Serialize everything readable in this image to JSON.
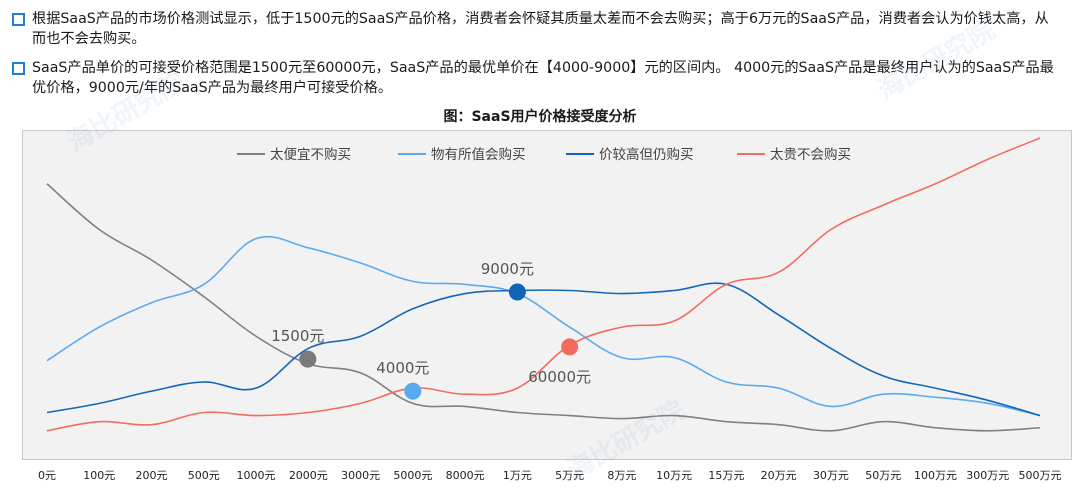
{
  "bullets": [
    "根据SaaS产品的市场价格测试显示，低于1500元的SaaS产品价格，消费者会怀疑其质量太差而不会去购买；高于6万元的SaaS产品，消费者会认为价钱太高，从而也不会去购买。",
    "SaaS产品单价的可接受价格范围是1500元至60000元，SaaS产品的最优单价在【4000-9000】元的区间内。 4000元的SaaS产品是最终用户认为的SaaS产品最优价格，9000元/年的SaaS产品为最终用户可接受价格。"
  ],
  "watermark": "海比研究院",
  "chart_data": {
    "type": "line",
    "title": "图：SaaS用户价格接受度分析",
    "xlabel": "",
    "ylabel": "",
    "grid": false,
    "legend_position": "top",
    "categories": [
      "0元",
      "100元",
      "200元",
      "500元",
      "1000元",
      "2000元",
      "3000元",
      "5000元",
      "8000元",
      "1万元",
      "5万元",
      "8万元",
      "10万元",
      "15万元",
      "20万元",
      "30万元",
      "50万元",
      "100万元",
      "300万元",
      "500万元"
    ],
    "ylim": [
      0,
      100
    ],
    "series": [
      {
        "name": "太便宜不购买",
        "color": "#808080",
        "values": [
          85,
          70,
          60,
          48,
          35,
          26,
          23,
          13,
          12,
          10,
          9,
          8,
          9,
          7,
          6,
          4,
          7,
          5,
          4,
          5
        ]
      },
      {
        "name": "物有所值会购买",
        "color": "#5aaaf0",
        "values": [
          27,
          38,
          46,
          52,
          67,
          64,
          59,
          53,
          52,
          49,
          38,
          28,
          28,
          20,
          18,
          12,
          16,
          15,
          13,
          9
        ]
      },
      {
        "name": "价较高但仍购买",
        "color": "#1467b8",
        "values": [
          10,
          13,
          17,
          20,
          18,
          31,
          35,
          44,
          49,
          50,
          50,
          49,
          50,
          52,
          42,
          31,
          22,
          18,
          14,
          9
        ]
      },
      {
        "name": "太贵不会购买",
        "color": "#f26c5f",
        "values": [
          4,
          7,
          6,
          10,
          9,
          10,
          13,
          18,
          16,
          18,
          32,
          38,
          40,
          52,
          56,
          70,
          78,
          85,
          93,
          100
        ]
      }
    ],
    "annotations": [
      {
        "label": "1500元",
        "x_index": 5.0,
        "y": 27.5,
        "color": "#7a7a7a",
        "label_pos": "above"
      },
      {
        "label": "4000元",
        "x_index": 7.0,
        "y": 17,
        "color": "#55aaf0",
        "label_pos": "above"
      },
      {
        "label": "9000元",
        "x_index": 9.0,
        "y": 49.5,
        "color": "#0f63b8",
        "label_pos": "above"
      },
      {
        "label": "60000元",
        "x_index": 10.0,
        "y": 31.5,
        "color": "#f26a5e",
        "label_pos": "below"
      }
    ]
  }
}
